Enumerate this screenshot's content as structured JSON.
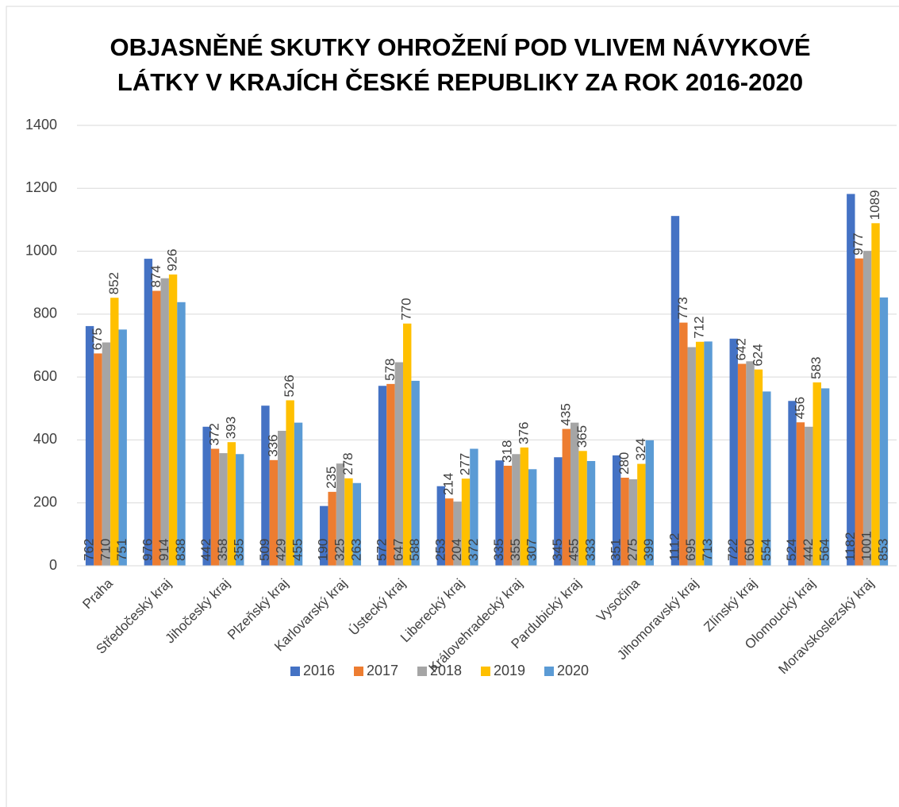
{
  "chart_data": {
    "type": "bar",
    "title": [
      "OBJASNĚNÉ SKUTKY OHROŽENÍ POD VLIVEM NÁVYKOVÉ",
      "LÁTKY V KRAJÍCH ČESKÉ REPUBLIKY ZA ROK 2016-2020"
    ],
    "categories": [
      "Praha",
      "Středočeský kraj",
      "Jihočeský kraj",
      "Plzeňský kraj",
      "Karlovarský kraj",
      "Ústecký kraj",
      "Liberecký kraj",
      "Královehradecký kraj",
      "Pardubický kraj",
      "Vysočina",
      "Jihomoravský kraj",
      "Zlínský kraj",
      "Olomoucký kraj",
      "Moravskoslezský kraj"
    ],
    "series": [
      {
        "name": "2016",
        "color": "#4472c4",
        "label_position": "inside_base",
        "values": [
          762,
          976,
          442,
          509,
          190,
          572,
          253,
          335,
          345,
          351,
          1112,
          722,
          524,
          1182
        ]
      },
      {
        "name": "2017",
        "color": "#ed7d31",
        "label_position": "outside_end",
        "values": [
          675,
          874,
          372,
          336,
          235,
          578,
          214,
          318,
          435,
          280,
          773,
          642,
          456,
          977
        ]
      },
      {
        "name": "2018",
        "color": "#a5a5a5",
        "label_position": "inside_base",
        "values": [
          710,
          914,
          358,
          429,
          325,
          647,
          204,
          355,
          455,
          275,
          695,
          650,
          442,
          1001
        ]
      },
      {
        "name": "2019",
        "color": "#ffc000",
        "label_position": "outside_end",
        "values": [
          852,
          926,
          393,
          526,
          278,
          770,
          277,
          376,
          365,
          324,
          712,
          624,
          583,
          1089
        ]
      },
      {
        "name": "2020",
        "color": "#5b9bd5",
        "label_position": "inside_base",
        "values": [
          751,
          838,
          355,
          455,
          263,
          588,
          372,
          307,
          333,
          399,
          713,
          554,
          564,
          853
        ]
      }
    ],
    "ylim": [
      0,
      1400
    ],
    "yticks": [
      0,
      200,
      400,
      600,
      800,
      1000,
      1200,
      1400
    ],
    "grid": true,
    "legend": "bottom"
  }
}
